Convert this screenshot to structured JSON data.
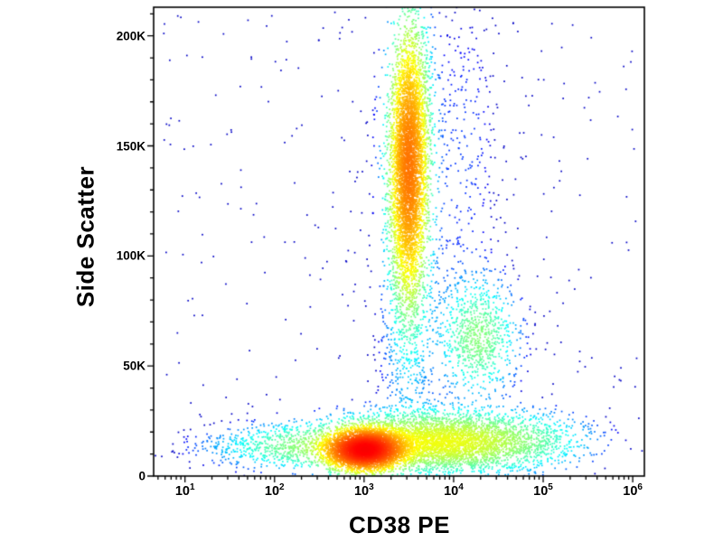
{
  "chart_data": {
    "type": "scatter",
    "subtype": "flow-cytometry-density-dot-plot",
    "title": "",
    "xlabel": "CD38 PE",
    "ylabel": "Side Scatter",
    "x_scale": "log10",
    "x_domain_log10": [
      0.65,
      6.13
    ],
    "x_tick_base": "10",
    "x_tick_exponents": [
      1,
      2,
      3,
      4,
      5,
      6
    ],
    "y_domain": [
      0,
      213000
    ],
    "y_ticks": [
      {
        "value": 0,
        "label": "0"
      },
      {
        "value": 50000,
        "label": "50K"
      },
      {
        "value": 100000,
        "label": "100K"
      },
      {
        "value": 150000,
        "label": "150K"
      },
      {
        "value": 200000,
        "label": "200K"
      }
    ],
    "grid": false,
    "legend": false,
    "colormap": "jet",
    "frame_color": "#000000",
    "background_color": "#ffffff",
    "density_scale": {
      "floor": 0.32,
      "max": 735,
      "mapping": "log"
    },
    "populations": [
      {
        "name": "ssc-high-vertical-cluster",
        "n": 5200,
        "x_center_log10": 3.5,
        "y_center": 141000,
        "x_sigma_log10": 0.105,
        "y_sigma": 30000,
        "rho": 0.15,
        "density_weight": 4600
      },
      {
        "name": "ssc-high-cluster-halo",
        "n": 550,
        "x_center_log10": 3.53,
        "y_center": 138000,
        "x_sigma_log10": 0.26,
        "y_sigma": 48000,
        "rho": 0.1,
        "density_weight": 120
      },
      {
        "name": "ssc-mid-right-cluster",
        "n": 700,
        "x_center_log10": 4.27,
        "y_center": 63000,
        "x_sigma_log10": 0.21,
        "y_sigma": 12500,
        "rho": -0.1,
        "density_weight": 330
      },
      {
        "name": "ssc-mid-right-halo",
        "n": 220,
        "x_center_log10": 4.22,
        "y_center": 68000,
        "x_sigma_log10": 0.33,
        "y_sigma": 21000,
        "rho": 0,
        "density_weight": 40
      },
      {
        "name": "ssc-low-hot-core",
        "n": 4200,
        "x_center_log10": 3.01,
        "y_center": 12000,
        "x_sigma_log10": 0.21,
        "y_sigma": 4500,
        "rho": 0.05,
        "density_weight": 4200
      },
      {
        "name": "ssc-low-broad-band",
        "n": 4600,
        "x_center_log10": 3.85,
        "y_center": 15500,
        "x_sigma_log10": 0.65,
        "y_sigma": 6800,
        "rho": 0,
        "density_weight": 1550
      },
      {
        "name": "ssc-low-band-left-tail",
        "n": 650,
        "x_center_log10": 2.35,
        "y_center": 13500,
        "x_sigma_log10": 0.42,
        "y_sigma": 5200,
        "rho": 0,
        "density_weight": 260
      },
      {
        "name": "far-left-sparse",
        "n": 200,
        "x_center_log10": 1.55,
        "y_center": 13000,
        "x_sigma_log10": 0.36,
        "y_sigma": 5000,
        "rho": 0,
        "density_weight": 20
      },
      {
        "name": "vertical-bridge-sparse",
        "n": 380,
        "x_center_log10": 3.5,
        "y_center": 55000,
        "x_sigma_log10": 0.17,
        "y_sigma": 22000,
        "rho": 0,
        "density_weight": 60
      },
      {
        "name": "right-column-sparse",
        "n": 230,
        "x_center_log10": 4.17,
        "y_center": 150000,
        "x_sigma_log10": 0.2,
        "y_sigma": 42000,
        "rho": 0,
        "density_weight": 45
      },
      {
        "name": "ssc-low-band-right-tail",
        "n": 150,
        "x_center_log10": 4.95,
        "y_center": 17000,
        "x_sigma_log10": 0.33,
        "y_sigma": 7500,
        "rho": 0,
        "density_weight": 40
      },
      {
        "name": "background-scatter",
        "n": 330,
        "uniform": true,
        "x_range_log10": [
          0.7,
          6.05
        ],
        "y_range": [
          0,
          210000
        ],
        "density_weight": 0
      }
    ]
  }
}
